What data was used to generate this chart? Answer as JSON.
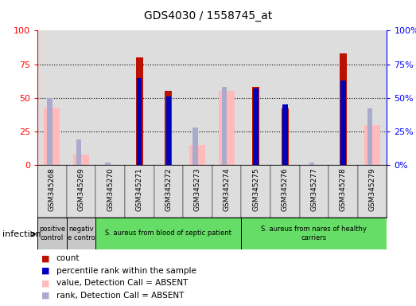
{
  "title": "GDS4030 / 1558745_at",
  "samples": [
    "GSM345268",
    "GSM345269",
    "GSM345270",
    "GSM345271",
    "GSM345272",
    "GSM345273",
    "GSM345274",
    "GSM345275",
    "GSM345276",
    "GSM345277",
    "GSM345278",
    "GSM345279"
  ],
  "count_values": [
    0,
    0,
    0,
    80,
    55,
    0,
    0,
    58,
    42,
    0,
    83,
    0
  ],
  "rank_values": [
    0,
    0,
    0,
    65,
    51,
    0,
    0,
    57,
    45,
    0,
    63,
    0
  ],
  "absent_value": [
    43,
    8,
    0,
    0,
    0,
    15,
    55,
    0,
    0,
    0,
    0,
    30
  ],
  "absent_rank": [
    50,
    19,
    2,
    0,
    0,
    28,
    58,
    0,
    0,
    2,
    0,
    42
  ],
  "groups": [
    {
      "label": "positive\ncontrol",
      "start": 0,
      "end": 1,
      "color": "#c8c8c8"
    },
    {
      "label": "negativ\ne contro",
      "start": 1,
      "end": 2,
      "color": "#c8c8c8"
    },
    {
      "label": "S. aureus from blood of septic patient",
      "start": 2,
      "end": 7,
      "color": "#66dd66"
    },
    {
      "label": "S. aureus from nares of healthy\ncarriers",
      "start": 7,
      "end": 12,
      "color": "#66dd66"
    }
  ],
  "bar_color_red": "#bb1100",
  "bar_color_blue": "#0000bb",
  "bar_color_pink": "#ffbbbb",
  "bar_color_lightblue": "#aaaacc",
  "ylim": [
    0,
    100
  ],
  "col_bg": "#dddddd"
}
